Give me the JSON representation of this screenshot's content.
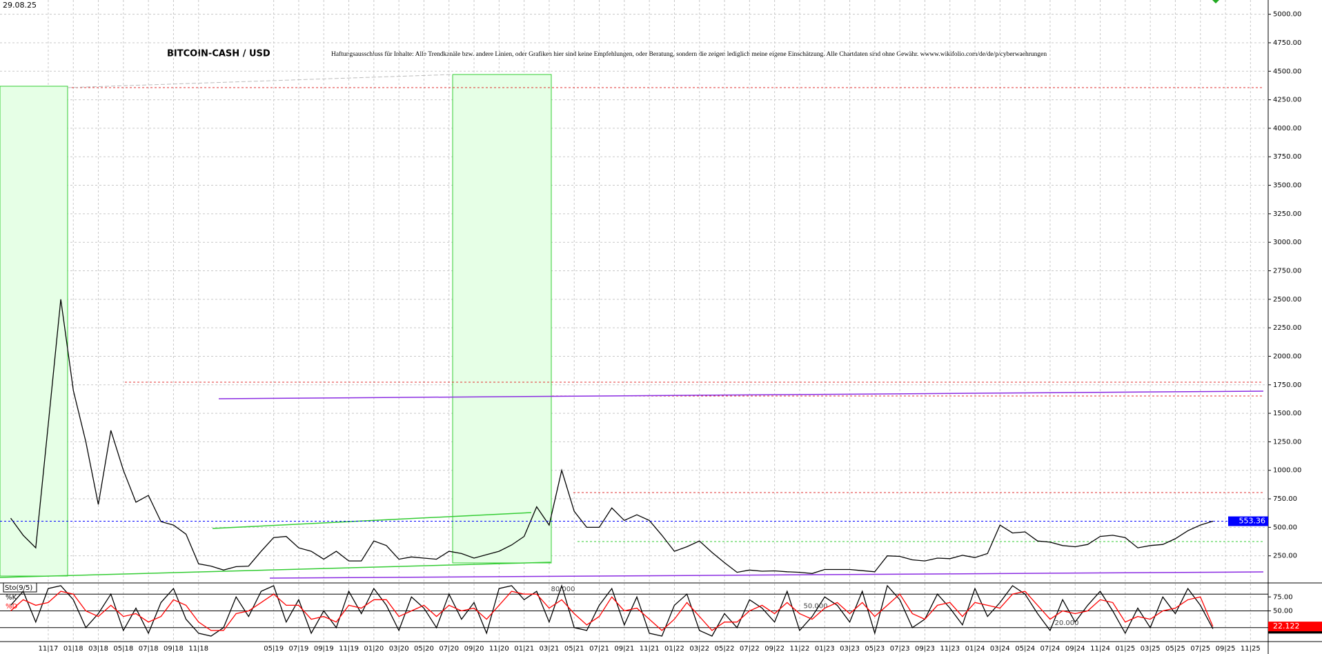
{
  "chart_data": [
    {
      "type": "line",
      "title": "BITCOIN-CASH / USD",
      "date": "29.08.25",
      "subtitle": "Haftungsausschluss für Inhalte: Alle Trendkanäle bzw. andere Linien, oder Grafiken hier sind keine Empfehlungen, oder Beratung, sondern die zeigen lediglich meine eigene Einschätzung. Alle Chartdaten sind ohne Gewähr. wwww.wikifolio.com/de/de/p/cyberwaehrungen",
      "categories": [
        null,
        null,
        null,
        "11|17",
        null,
        "01|18",
        null,
        "03|18",
        null,
        "05|18",
        null,
        "07|18",
        null,
        "09|18",
        null,
        "11|18",
        null,
        null,
        null,
        null,
        null,
        "05|19",
        null,
        "07|19",
        null,
        "09|19",
        null,
        "11|19",
        null,
        "01|20",
        null,
        "03|20",
        null,
        "05|20",
        null,
        "07|20",
        null,
        "09|20",
        null,
        "11|20",
        null,
        "01|21",
        null,
        "03|21",
        null,
        "05|21",
        null,
        "07|21",
        null,
        "09|21",
        null,
        "11|21",
        null,
        "01|22",
        null,
        "03|22",
        null,
        "05|22",
        null,
        "07|22",
        null,
        "09|22",
        null,
        "11|22",
        null,
        "01|23",
        null,
        "03|23",
        null,
        "05|23",
        null,
        "07|23",
        null,
        "09|23",
        null,
        "11|23",
        null,
        "01|24",
        null,
        "03|24",
        null,
        "05|24",
        null,
        "07|24",
        null,
        "09|24",
        null,
        "11|24",
        null,
        "01|25",
        null,
        "03|25",
        null,
        "05|25",
        null,
        "07|25",
        null,
        "09|25",
        null,
        "11|25"
      ],
      "series": [
        {
          "color": "#000000",
          "values": [
            580,
            430,
            320,
            1400,
            2500,
            1700,
            1250,
            700,
            1350,
            1000,
            720,
            780,
            550,
            520,
            440,
            180,
            160,
            125,
            155,
            160,
            290,
            410,
            420,
            320,
            290,
            220,
            290,
            205,
            205,
            380,
            340,
            220,
            240,
            230,
            220,
            290,
            270,
            230,
            260,
            290,
            345,
            420,
            680,
            520,
            1000,
            640,
            500,
            500,
            670,
            560,
            610,
            560,
            430,
            290,
            330,
            380,
            280,
            190,
            105,
            125,
            115,
            118,
            110,
            105,
            95,
            130,
            130,
            130,
            120,
            110,
            250,
            245,
            215,
            205,
            230,
            225,
            255,
            235,
            270,
            520,
            450,
            460,
            380,
            370,
            340,
            330,
            350,
            420,
            430,
            410,
            320,
            340,
            350,
            400,
            470,
            520,
            553.36,
            null,
            null,
            null
          ]
        }
      ],
      "ylim": [
        0,
        5125
      ],
      "yticks": [
        {
          "value": 250,
          "label": "250.00"
        },
        {
          "value": 500,
          "label": "500.00"
        },
        {
          "value": 750,
          "label": "750.00"
        },
        {
          "value": 1000,
          "label": "1000.00"
        },
        {
          "value": 1250,
          "label": "1250.00"
        },
        {
          "value": 1500,
          "label": "1500.00"
        },
        {
          "value": 1750,
          "label": "1750.00"
        },
        {
          "value": 2000,
          "label": "2000.00"
        },
        {
          "value": 2250,
          "label": "2250.00"
        },
        {
          "value": 2500,
          "label": "2500.00"
        },
        {
          "value": 2750,
          "label": "2750.00"
        },
        {
          "value": 3000,
          "label": "3000.00"
        },
        {
          "value": 3250,
          "label": "3250.00"
        },
        {
          "value": 3500,
          "label": "3500.00"
        },
        {
          "value": 3750,
          "label": "3750.00"
        },
        {
          "value": 4000,
          "label": "4000.00"
        },
        {
          "value": 4250,
          "label": "4250.00"
        },
        {
          "value": 4500,
          "label": "4500.00"
        },
        {
          "value": 4750,
          "label": "4750.00"
        },
        {
          "value": 5000,
          "label": "5000.00"
        }
      ],
      "grid": true,
      "last_color": "#0000ff"
    },
    {
      "type": "line",
      "title": "Sto(9/5)",
      "series": [
        {
          "name": "%K",
          "color": "#000000",
          "values": [
            60,
            85,
            30,
            90,
            95,
            70,
            20,
            45,
            80,
            15,
            55,
            10,
            65,
            90,
            35,
            10,
            5,
            20,
            75,
            40,
            85,
            95,
            30,
            70,
            10,
            50,
            20,
            85,
            45,
            90,
            60,
            15,
            75,
            55,
            20,
            80,
            35,
            65,
            10,
            90,
            95,
            70,
            85,
            30,
            95,
            20,
            15,
            60,
            90,
            25,
            75,
            10,
            5,
            60,
            80,
            15,
            5,
            45,
            20,
            70,
            55,
            30,
            85,
            15,
            40,
            75,
            60,
            30,
            85,
            10,
            95,
            70,
            20,
            35,
            80,
            55,
            25,
            90,
            40,
            65,
            95,
            80,
            45,
            15,
            70,
            30,
            60,
            85,
            50,
            10,
            55,
            20,
            75,
            45,
            90,
            60,
            18.073,
            null,
            null,
            null
          ]
        },
        {
          "name": "%D",
          "color": "#ff0000",
          "values": [
            50,
            70,
            60,
            65,
            85,
            80,
            50,
            40,
            60,
            40,
            45,
            30,
            40,
            70,
            60,
            30,
            15,
            15,
            45,
            50,
            65,
            80,
            60,
            60,
            35,
            40,
            30,
            60,
            55,
            70,
            70,
            40,
            50,
            60,
            40,
            60,
            50,
            55,
            35,
            60,
            85,
            80,
            80,
            55,
            70,
            45,
            25,
            40,
            75,
            50,
            55,
            35,
            15,
            35,
            65,
            40,
            15,
            30,
            30,
            50,
            60,
            45,
            65,
            45,
            35,
            55,
            65,
            45,
            65,
            40,
            60,
            80,
            45,
            35,
            60,
            65,
            40,
            65,
            60,
            55,
            80,
            85,
            60,
            35,
            50,
            45,
            50,
            70,
            65,
            30,
            40,
            35,
            50,
            55,
            70,
            75,
            22.122,
            null,
            null,
            null
          ]
        }
      ],
      "ylim": [
        0,
        100
      ],
      "yticks": [
        {
          "value": 75,
          "label": "75.00"
        },
        {
          "value": 50,
          "label": "50.00"
        }
      ],
      "levels": [
        {
          "value": 80,
          "label": "80.000"
        },
        {
          "value": 50,
          "label": "50.000"
        },
        {
          "value": 20,
          "label": "20.000"
        }
      ]
    }
  ]
}
